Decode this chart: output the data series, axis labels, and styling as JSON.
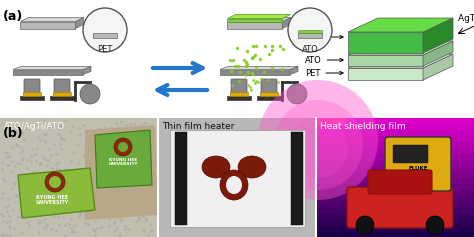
{
  "fig_width": 4.74,
  "fig_height": 2.37,
  "dpi": 100,
  "bg": "#ffffff",
  "panel_a_label": "(a)",
  "panel_b_label": "(b)",
  "label_fontsize": 9,
  "schematic_title": "AgTi(Heat Shield)",
  "layer_labels": [
    "ATO",
    "ATO",
    "PET"
  ],
  "photo_labels": [
    "ATO/AgTi/ATO",
    "Thin film heater",
    "Heat shielding film"
  ],
  "arrow_color": "#2277cc",
  "colors": {
    "substrate_top": "#c8c8c8",
    "substrate_bot": "#909090",
    "film_green": "#88cc44",
    "film_green_dark": "#66aa22",
    "layer_bright_green": "#44bb44",
    "layer_mid_green": "#88cc88",
    "layer_pale_green": "#aaddaa",
    "layer_lightest": "#cceecc",
    "crucible_body": "#888888",
    "crucible_dark": "#555555",
    "stand_color": "#444444",
    "yellow_heat": "#ddaa00",
    "circle_edge": "#555555",
    "circle_face": "#f5f5f5",
    "b1_bg": "#c8c8b8",
    "b1_card_green": "#99bb44",
    "b1_card_outline": "#557722",
    "b1_logo_brown": "#8b2a0a",
    "b2_bg": "#d8d8d8",
    "b2_white": "#f4f4f4",
    "b2_electrode": "#2a2a2a",
    "b2_logo_brown": "#7a1a08",
    "b3_bg_top": "#cc44aa",
    "b3_bg_bot": "#220022",
    "b3_car_red": "#cc2222",
    "b3_device_yellow": "#ddaa10",
    "text_white": "#ffffff",
    "text_dark": "#222222",
    "text_black": "#111111"
  }
}
